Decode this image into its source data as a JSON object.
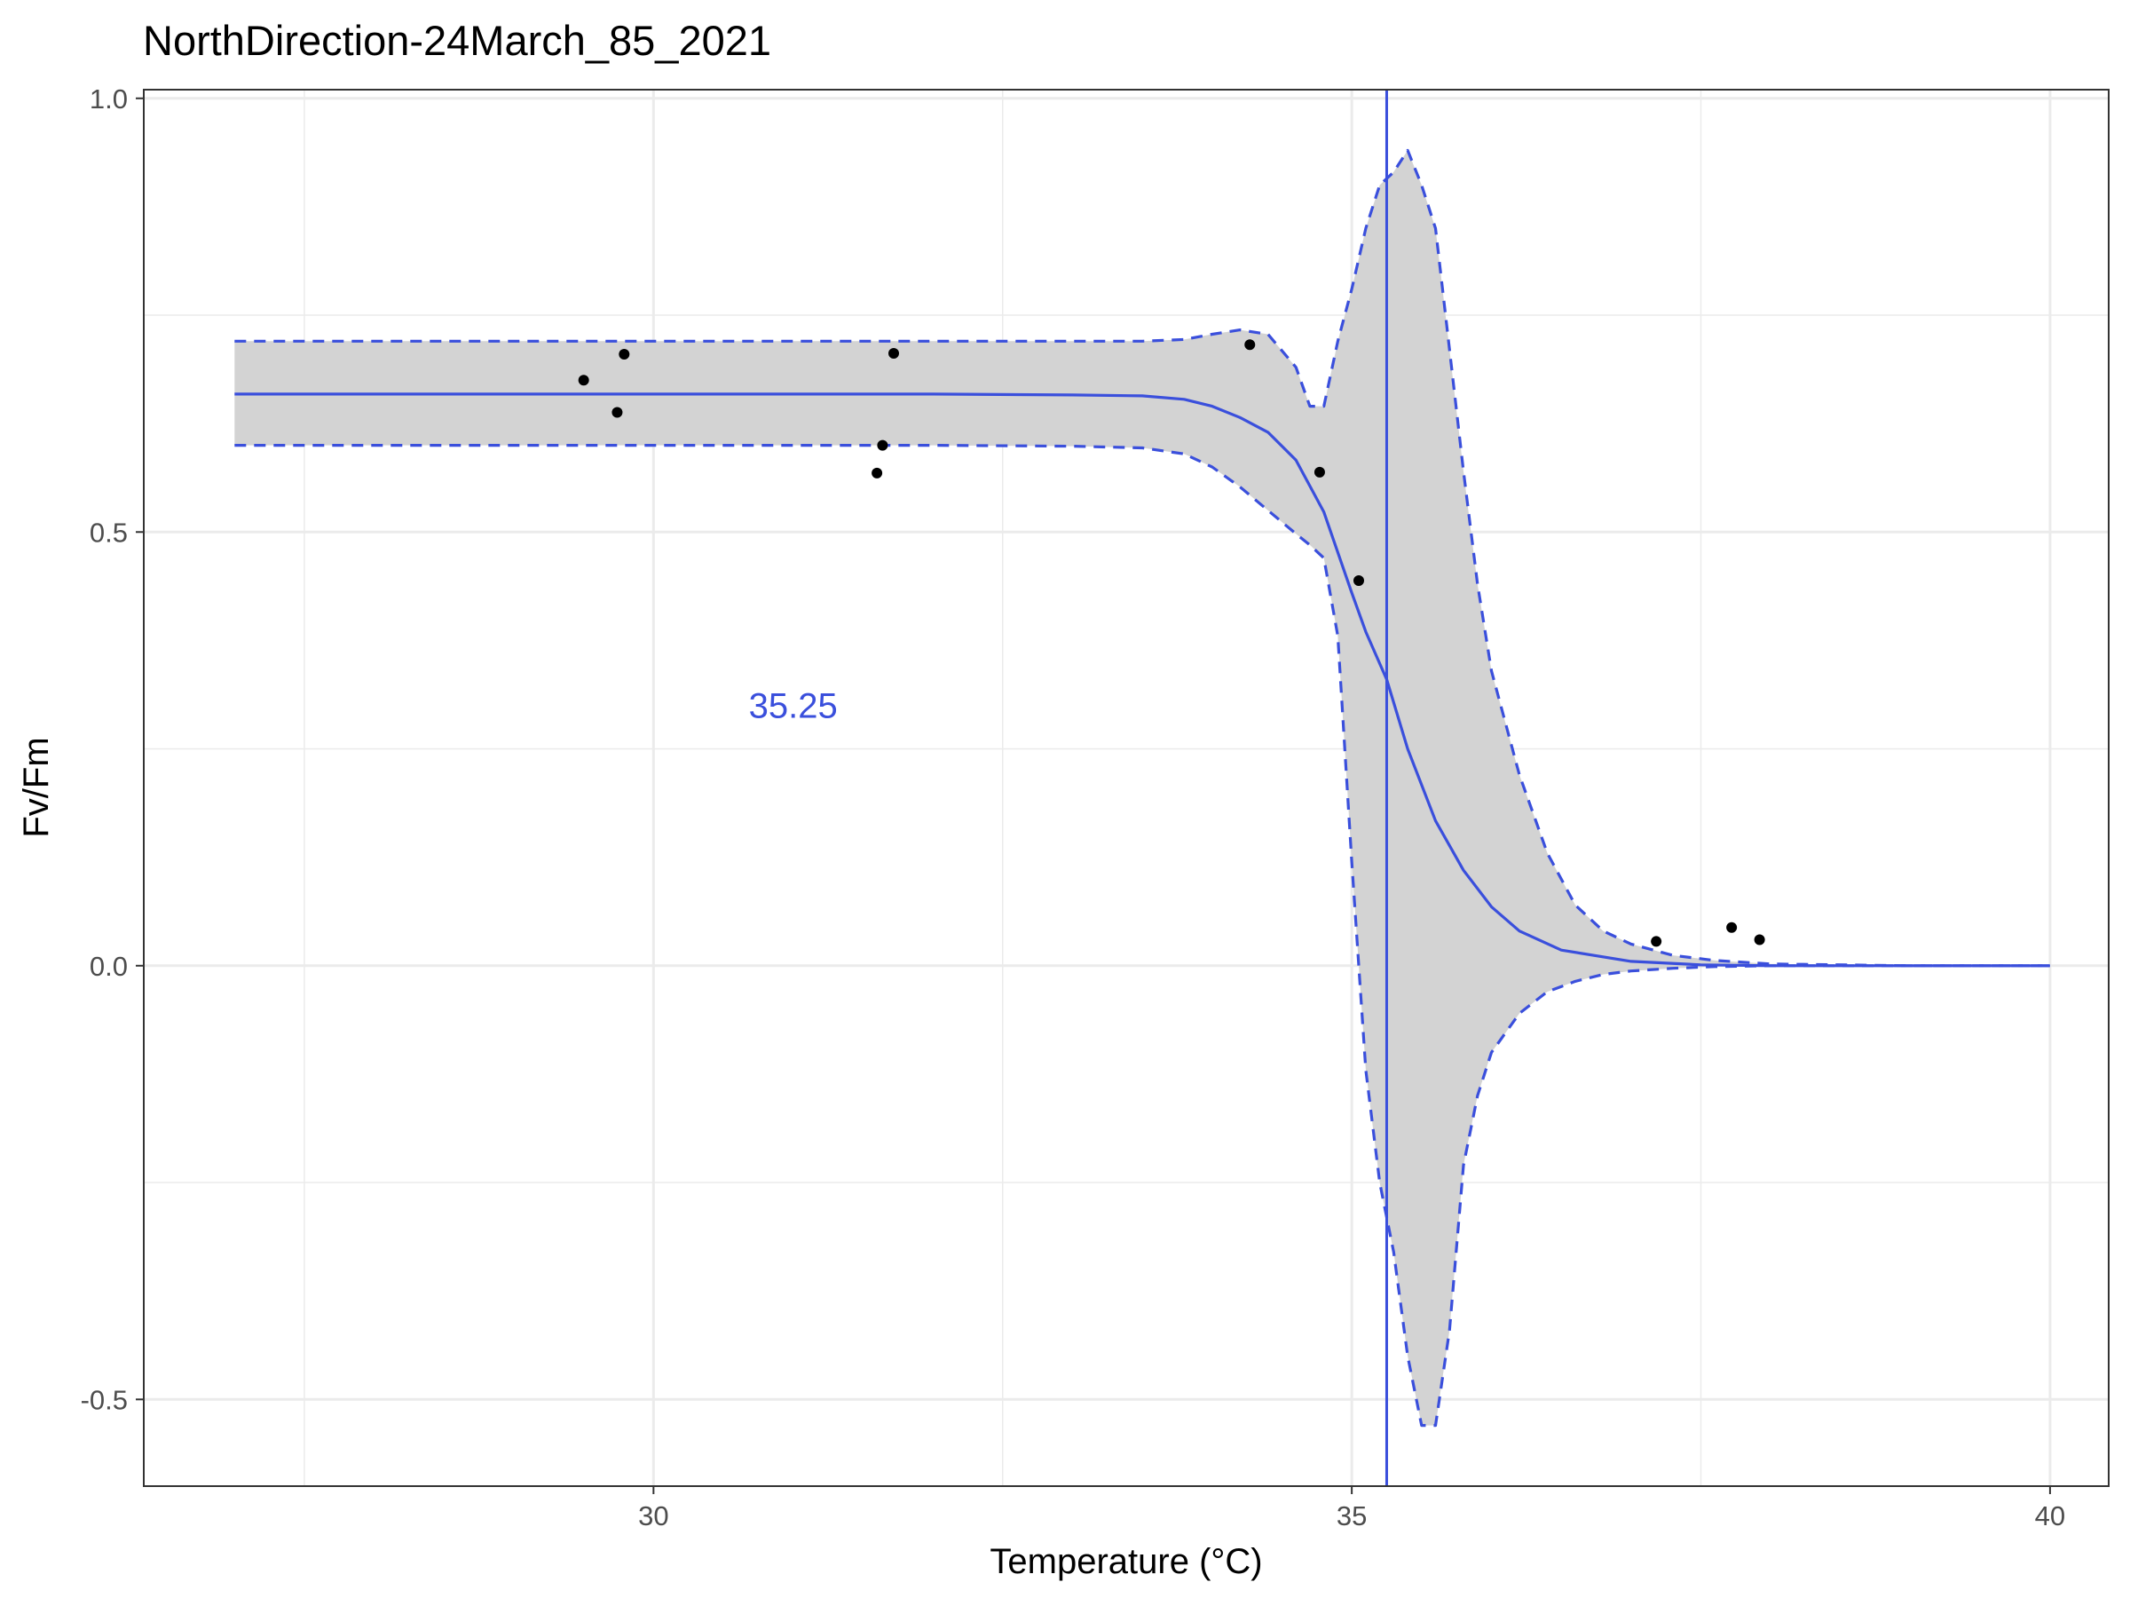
{
  "chart_data": {
    "type": "scatter",
    "title": "NorthDirection-24March_85_2021",
    "xlabel": "Temperature (°C)",
    "ylabel": "Fv/Fm",
    "xlim": [
      26.35,
      40.42
    ],
    "ylim": [
      -0.6,
      1.01
    ],
    "x_ticks": [
      30,
      35,
      40
    ],
    "x_tick_labels": [
      "30",
      "35",
      "40"
    ],
    "y_ticks": [
      -0.5,
      0.0,
      0.5,
      1.0
    ],
    "y_tick_labels": [
      "-0.5",
      "0.0",
      "0.5",
      "1.0"
    ],
    "grid": true,
    "annotation": {
      "text": "35.25",
      "x": 31.0,
      "y": 0.3
    },
    "threshold_x": 35.25,
    "colors": {
      "fit": "#3a4fdc",
      "ribbon": "#d3d3d3",
      "points": "#000000",
      "grid": "#ebebeb",
      "panel_border": "#333333"
    },
    "points": [
      {
        "x": 29.5,
        "y": 0.675
      },
      {
        "x": 29.74,
        "y": 0.638
      },
      {
        "x": 29.79,
        "y": 0.705
      },
      {
        "x": 31.6,
        "y": 0.568
      },
      {
        "x": 31.64,
        "y": 0.6
      },
      {
        "x": 31.72,
        "y": 0.706
      },
      {
        "x": 34.27,
        "y": 0.716
      },
      {
        "x": 34.77,
        "y": 0.569
      },
      {
        "x": 35.05,
        "y": 0.444
      },
      {
        "x": 37.18,
        "y": 0.028
      },
      {
        "x": 37.72,
        "y": 0.044
      },
      {
        "x": 37.92,
        "y": 0.03
      }
    ],
    "fit_line": {
      "x": [
        27.0,
        28.0,
        29.0,
        30.0,
        31.0,
        32.0,
        33.0,
        33.5,
        33.8,
        34.0,
        34.2,
        34.4,
        34.6,
        34.8,
        35.0,
        35.1,
        35.25,
        35.4,
        35.6,
        35.8,
        36.0,
        36.2,
        36.5,
        37.0,
        37.5,
        38.0,
        39.0,
        40.0
      ],
      "y": [
        0.659,
        0.659,
        0.659,
        0.659,
        0.659,
        0.659,
        0.658,
        0.657,
        0.653,
        0.645,
        0.632,
        0.615,
        0.583,
        0.523,
        0.43,
        0.385,
        0.33,
        0.25,
        0.167,
        0.11,
        0.068,
        0.04,
        0.018,
        0.005,
        0.001,
        0.0,
        0.0,
        0.0
      ]
    },
    "upper_band": {
      "x": [
        27.0,
        28.0,
        29.0,
        30.0,
        31.0,
        32.0,
        33.0,
        33.5,
        33.8,
        34.0,
        34.2,
        34.4,
        34.6,
        34.7,
        34.8,
        34.9,
        35.0,
        35.1,
        35.2,
        35.3,
        35.4,
        35.5,
        35.6,
        35.7,
        35.8,
        35.9,
        36.0,
        36.2,
        36.4,
        36.6,
        36.8,
        37.0,
        37.3,
        37.6,
        38.0,
        39.0,
        40.0
      ],
      "y": [
        0.72,
        0.72,
        0.72,
        0.72,
        0.72,
        0.72,
        0.72,
        0.72,
        0.722,
        0.728,
        0.733,
        0.728,
        0.69,
        0.645,
        0.645,
        0.72,
        0.78,
        0.85,
        0.9,
        0.915,
        0.94,
        0.9,
        0.85,
        0.71,
        0.57,
        0.44,
        0.34,
        0.22,
        0.13,
        0.07,
        0.04,
        0.025,
        0.012,
        0.006,
        0.002,
        0.0,
        0.0
      ]
    },
    "lower_band": {
      "x": [
        27.0,
        28.0,
        29.0,
        30.0,
        31.0,
        32.0,
        33.0,
        33.5,
        33.8,
        34.0,
        34.2,
        34.4,
        34.6,
        34.7,
        34.8,
        34.9,
        35.0,
        35.1,
        35.2,
        35.3,
        35.4,
        35.5,
        35.6,
        35.7,
        35.8,
        35.9,
        36.0,
        36.2,
        36.4,
        36.6,
        36.8,
        37.0,
        37.3,
        37.6,
        38.0,
        39.0,
        40.0
      ],
      "y": [
        0.6,
        0.6,
        0.6,
        0.6,
        0.6,
        0.6,
        0.599,
        0.597,
        0.59,
        0.575,
        0.552,
        0.525,
        0.498,
        0.485,
        0.47,
        0.38,
        0.12,
        -0.12,
        -0.25,
        -0.33,
        -0.45,
        -0.53,
        -0.53,
        -0.42,
        -0.23,
        -0.15,
        -0.1,
        -0.055,
        -0.03,
        -0.018,
        -0.01,
        -0.006,
        -0.003,
        -0.001,
        0.0,
        0.0,
        0.0
      ]
    }
  }
}
